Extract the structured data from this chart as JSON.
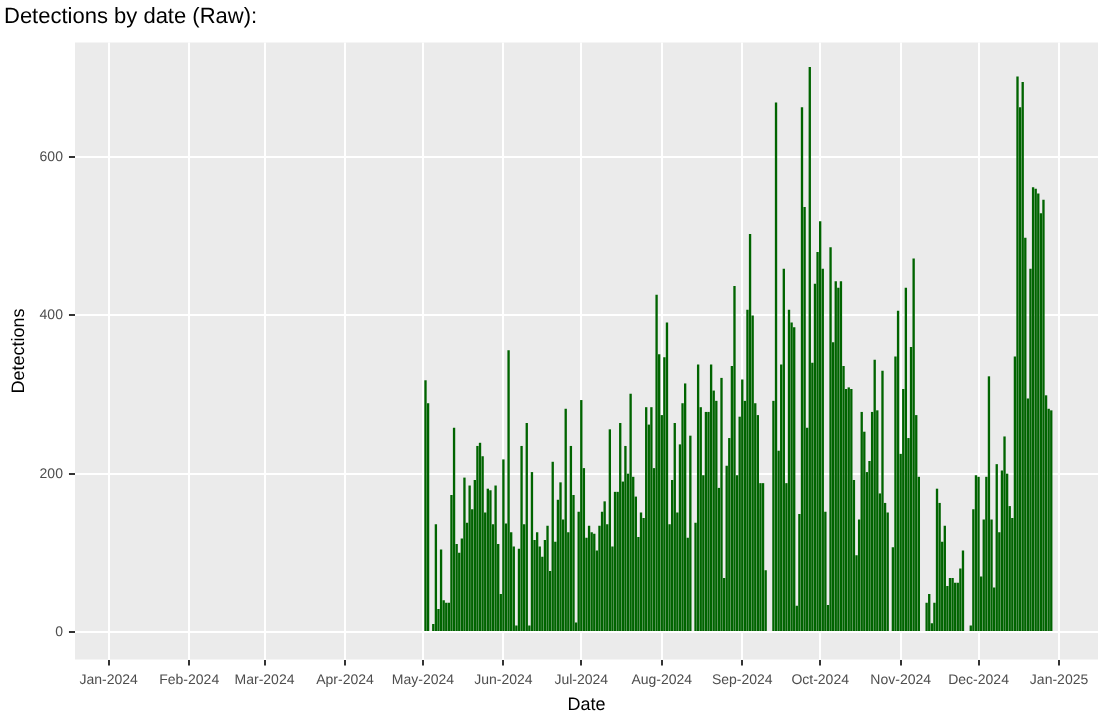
{
  "chart_data": {
    "type": "bar",
    "title": "Detections by date (Raw):",
    "xlabel": "Date",
    "ylabel": "Detections",
    "x": [
      "2024-05-02",
      "2024-05-03",
      "2024-05-04",
      "2024-05-05",
      "2024-05-06",
      "2024-05-07",
      "2024-05-08",
      "2024-05-09",
      "2024-05-10",
      "2024-05-11",
      "2024-05-12",
      "2024-05-13",
      "2024-05-14",
      "2024-05-15",
      "2024-05-16",
      "2024-05-17",
      "2024-05-18",
      "2024-05-19",
      "2024-05-20",
      "2024-05-21",
      "2024-05-22",
      "2024-05-23",
      "2024-05-24",
      "2024-05-25",
      "2024-05-26",
      "2024-05-27",
      "2024-05-28",
      "2024-05-29",
      "2024-05-30",
      "2024-05-31",
      "2024-06-01",
      "2024-06-02",
      "2024-06-03",
      "2024-06-04",
      "2024-06-05",
      "2024-06-06",
      "2024-06-07",
      "2024-06-08",
      "2024-06-09",
      "2024-06-10",
      "2024-06-11",
      "2024-06-12",
      "2024-06-13",
      "2024-06-14",
      "2024-06-15",
      "2024-06-16",
      "2024-06-17",
      "2024-06-18",
      "2024-06-19",
      "2024-06-20",
      "2024-06-21",
      "2024-06-22",
      "2024-06-23",
      "2024-06-24",
      "2024-06-25",
      "2024-06-26",
      "2024-06-27",
      "2024-06-28",
      "2024-06-29",
      "2024-06-30",
      "2024-07-01",
      "2024-07-02",
      "2024-07-03",
      "2024-07-04",
      "2024-07-05",
      "2024-07-06",
      "2024-07-07",
      "2024-07-08",
      "2024-07-09",
      "2024-07-10",
      "2024-07-11",
      "2024-07-12",
      "2024-07-13",
      "2024-07-14",
      "2024-07-15",
      "2024-07-16",
      "2024-07-17",
      "2024-07-18",
      "2024-07-19",
      "2024-07-20",
      "2024-07-21",
      "2024-07-22",
      "2024-07-23",
      "2024-07-24",
      "2024-07-25",
      "2024-07-26",
      "2024-07-27",
      "2024-07-28",
      "2024-07-29",
      "2024-07-30",
      "2024-07-31",
      "2024-08-01",
      "2024-08-02",
      "2024-08-03",
      "2024-08-04",
      "2024-08-05",
      "2024-08-06",
      "2024-08-07",
      "2024-08-08",
      "2024-08-09",
      "2024-08-10",
      "2024-08-11",
      "2024-08-12",
      "2024-08-13",
      "2024-08-14",
      "2024-08-15",
      "2024-08-16",
      "2024-08-17",
      "2024-08-18",
      "2024-08-19",
      "2024-08-20",
      "2024-08-21",
      "2024-08-22",
      "2024-08-23",
      "2024-08-24",
      "2024-08-25",
      "2024-08-26",
      "2024-08-27",
      "2024-08-28",
      "2024-08-29",
      "2024-08-30",
      "2024-08-31",
      "2024-09-01",
      "2024-09-02",
      "2024-09-03",
      "2024-09-04",
      "2024-09-05",
      "2024-09-06",
      "2024-09-07",
      "2024-09-08",
      "2024-09-09",
      "2024-09-10",
      "2024-09-11",
      "2024-09-12",
      "2024-09-13",
      "2024-09-14",
      "2024-09-15",
      "2024-09-16",
      "2024-09-17",
      "2024-09-18",
      "2024-09-19",
      "2024-09-20",
      "2024-09-21",
      "2024-09-22",
      "2024-09-23",
      "2024-09-24",
      "2024-09-25",
      "2024-09-26",
      "2024-09-27",
      "2024-09-28",
      "2024-09-29",
      "2024-09-30",
      "2024-10-01",
      "2024-10-02",
      "2024-10-03",
      "2024-10-04",
      "2024-10-05",
      "2024-10-06",
      "2024-10-07",
      "2024-10-08",
      "2024-10-09",
      "2024-10-10",
      "2024-10-11",
      "2024-10-12",
      "2024-10-13",
      "2024-10-14",
      "2024-10-15",
      "2024-10-16",
      "2024-10-17",
      "2024-10-18",
      "2024-10-19",
      "2024-10-20",
      "2024-10-21",
      "2024-10-22",
      "2024-10-23",
      "2024-10-24",
      "2024-10-25",
      "2024-10-26",
      "2024-10-27",
      "2024-10-28",
      "2024-10-29",
      "2024-10-30",
      "2024-10-31",
      "2024-11-01",
      "2024-11-02",
      "2024-11-03",
      "2024-11-04",
      "2024-11-05",
      "2024-11-06",
      "2024-11-07",
      "2024-11-08",
      "2024-11-09",
      "2024-11-10",
      "2024-11-11",
      "2024-11-12",
      "2024-11-13",
      "2024-11-14",
      "2024-11-15",
      "2024-11-16",
      "2024-11-17",
      "2024-11-18",
      "2024-11-19",
      "2024-11-20",
      "2024-11-21",
      "2024-11-22",
      "2024-11-23",
      "2024-11-24",
      "2024-11-25",
      "2024-11-26",
      "2024-11-27",
      "2024-11-28",
      "2024-11-29",
      "2024-11-30",
      "2024-12-01",
      "2024-12-02",
      "2024-12-03",
      "2024-12-04",
      "2024-12-05",
      "2024-12-06",
      "2024-12-07",
      "2024-12-08",
      "2024-12-09",
      "2024-12-10",
      "2024-12-11",
      "2024-12-12",
      "2024-12-13",
      "2024-12-14",
      "2024-12-15",
      "2024-12-16",
      "2024-12-17",
      "2024-12-18",
      "2024-12-19",
      "2024-12-20",
      "2024-12-21",
      "2024-12-22",
      "2024-12-23",
      "2024-12-24",
      "2024-12-25",
      "2024-12-26",
      "2024-12-27",
      "2024-12-28",
      "2024-12-29"
    ],
    "series": [
      {
        "color": "#006400",
        "values": [
          318,
          289,
          0,
          10,
          136,
          29,
          104,
          40,
          37,
          37,
          173,
          258,
          111,
          100,
          118,
          195,
          138,
          185,
          155,
          192,
          235,
          239,
          222,
          151,
          181,
          179,
          136,
          185,
          111,
          48,
          218,
          137,
          356,
          126,
          108,
          8,
          105,
          235,
          136,
          264,
          8,
          202,
          116,
          126,
          108,
          95,
          116,
          134,
          77,
          215,
          114,
          167,
          189,
          142,
          282,
          126,
          235,
          173,
          12,
          152,
          293,
          207,
          119,
          134,
          126,
          124,
          103,
          134,
          152,
          165,
          136,
          256,
          108,
          177,
          177,
          264,
          190,
          235,
          200,
          301,
          196,
          171,
          120,
          151,
          144,
          284,
          262,
          284,
          207,
          426,
          351,
          274,
          347,
          391,
          136,
          192,
          264,
          151,
          237,
          289,
          314,
          119,
          248,
          0,
          138,
          338,
          284,
          198,
          278,
          278,
          338,
          305,
          292,
          182,
          321,
          68,
          210,
          245,
          336,
          437,
          198,
          272,
          319,
          292,
          407,
          503,
          400,
          289,
          274,
          188,
          188,
          78,
          0,
          0,
          292,
          669,
          229,
          338,
          459,
          188,
          407,
          391,
          385,
          33,
          149,
          663,
          537,
          258,
          714,
          340,
          440,
          480,
          519,
          459,
          152,
          34,
          486,
          366,
          443,
          435,
          443,
          336,
          307,
          309,
          307,
          192,
          97,
          142,
          278,
          253,
          202,
          216,
          278,
          344,
          280,
          175,
          330,
          163,
          151,
          0,
          107,
          348,
          406,
          225,
          307,
          435,
          245,
          360,
          472,
          274,
          196,
          0,
          0,
          37,
          48,
          11,
          37,
          181,
          163,
          114,
          134,
          58,
          68,
          68,
          62,
          62,
          80,
          103,
          0,
          0,
          8,
          155,
          198,
          196,
          70,
          142,
          196,
          323,
          142,
          56,
          212,
          126,
          204,
          247,
          200,
          159,
          144,
          348,
          702,
          663,
          695,
          498,
          295,
          459,
          562,
          560,
          554,
          529,
          546,
          299,
          282,
          280
        ]
      }
    ],
    "xlim": [
      "2023-12-19",
      "2025-01-16"
    ],
    "xticks": [
      {
        "value": "2024-01-01",
        "label": "Jan-2024"
      },
      {
        "value": "2024-02-01",
        "label": "Feb-2024"
      },
      {
        "value": "2024-03-01",
        "label": "Mar-2024"
      },
      {
        "value": "2024-04-01",
        "label": "Apr-2024"
      },
      {
        "value": "2024-05-01",
        "label": "May-2024"
      },
      {
        "value": "2024-06-01",
        "label": "Jun-2024"
      },
      {
        "value": "2024-07-01",
        "label": "Jul-2024"
      },
      {
        "value": "2024-08-01",
        "label": "Aug-2024"
      },
      {
        "value": "2024-09-01",
        "label": "Sep-2024"
      },
      {
        "value": "2024-10-01",
        "label": "Oct-2024"
      },
      {
        "value": "2024-11-01",
        "label": "Nov-2024"
      },
      {
        "value": "2024-12-01",
        "label": "Dec-2024"
      },
      {
        "value": "2025-01-01",
        "label": "Jan-2025"
      }
    ],
    "ylim": [
      -35,
      745
    ],
    "yticks": [
      0,
      200,
      400,
      600
    ],
    "grid": true
  }
}
